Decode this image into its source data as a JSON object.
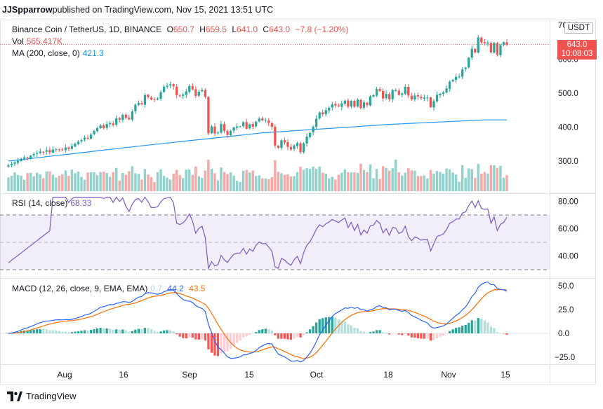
{
  "header": {
    "author": "JJSpparrow",
    "text": "published on TradingView.com, Nov 15, 2021 13:51 UTC"
  },
  "legend_main": {
    "symbol": "Binance Coin / TetherUS, 1D, BINANCE",
    "o_label": "O",
    "o": "650.7",
    "h_label": "H",
    "h": "659.5",
    "l_label": "L",
    "l": "641.0",
    "c_label": "C",
    "c": "643.0",
    "chg": "−7.8 (−1.20%)"
  },
  "legend_vol": {
    "label": "Vol",
    "value": "565.417K"
  },
  "legend_ma": {
    "label": "MA (200, close, 0)",
    "value": "421.3"
  },
  "legend_rsi": {
    "label": "RSI (14, close)",
    "value": "68.33"
  },
  "legend_macd": {
    "label": "MACD (12, 26, close, 9, EMA, EMA)",
    "hist": "0.7",
    "macd": "44.2",
    "signal": "43.5"
  },
  "currency_button": "USDT",
  "price_label": {
    "price": "643.0",
    "countdown": "10:08:03"
  },
  "footer": {
    "brand": "TradingView"
  },
  "colors": {
    "up": "#26a69a",
    "down": "#ef5350",
    "ma": "#2196f3",
    "rsi": "#7e57c2",
    "macd": "#2962ff",
    "signal": "#ff6d00"
  },
  "chart_data": [
    {
      "type": "candlestick",
      "title": "Binance Coin / TetherUS, 1D, BINANCE",
      "x_ticks": [
        "Aug",
        "16",
        "Sep",
        "15",
        "Oct",
        "18",
        "Nov",
        "15"
      ],
      "y_ticks": [
        300.0,
        400.0,
        500.0,
        600.0,
        700.0
      ],
      "ylim": [
        215,
        710
      ],
      "close": [
        288,
        292,
        296,
        301,
        307,
        311,
        309,
        316,
        321,
        324,
        328,
        327,
        332,
        326,
        334,
        335,
        334,
        333,
        340,
        336,
        344,
        351,
        357,
        362,
        369,
        366,
        378,
        389,
        397,
        405,
        397,
        409,
        412,
        406,
        426,
        422,
        436,
        428,
        423,
        446,
        466,
        471,
        467,
        494,
        488,
        481,
        481,
        484,
        503,
        519,
        522,
        526,
        520,
        494,
        492,
        496,
        505,
        521,
        511,
        492,
        504,
        509,
        489,
        382,
        402,
        381,
        384,
        409,
        389,
        377,
        389,
        399,
        402,
        402,
        414,
        395,
        408,
        401,
        416,
        425,
        420,
        421,
        412,
        401,
        346,
        339,
        361,
        355,
        342,
        334,
        346,
        353,
        326,
        352,
        372,
        383,
        401,
        425,
        443,
        438,
        450,
        457,
        467,
        464,
        461,
        470,
        478,
        460,
        477,
        460,
        481,
        456,
        473,
        465,
        491,
        494,
        512,
        506,
        484,
        498,
        482,
        509,
        508,
        495,
        499,
        519,
        493,
        482,
        493,
        490,
        485,
        487,
        487,
        459,
        476,
        495,
        498,
        502,
        514,
        534,
        539,
        548,
        549,
        570,
        575,
        604,
        631,
        620,
        664,
        649,
        647,
        649,
        620,
        648,
        613,
        641,
        650,
        643
      ],
      "ma200": {
        "x": [
          0,
          40,
          80,
          120,
          150
        ],
        "values": [
          300,
          343,
          383,
          408,
          421.3
        ]
      },
      "volume": {
        "unit": "K",
        "last": "565.417K"
      }
    },
    {
      "type": "line",
      "title": "RSI (14, close)",
      "y_ticks": [
        40.0,
        60.0,
        80.0
      ],
      "ylim": [
        30,
        85
      ],
      "band": [
        30,
        70
      ],
      "middle": 50,
      "last": 68.33
    },
    {
      "type": "line",
      "title": "MACD (12, 26, close, 9, EMA, EMA)",
      "y_ticks": [
        -25.0,
        0.0,
        25.0,
        50.0
      ],
      "ylim": [
        -28,
        54
      ],
      "series": [
        {
          "name": "MACD",
          "last": 44.2
        },
        {
          "name": "Signal",
          "last": 43.5
        },
        {
          "name": "Histogram",
          "last": 0.7
        }
      ]
    }
  ]
}
